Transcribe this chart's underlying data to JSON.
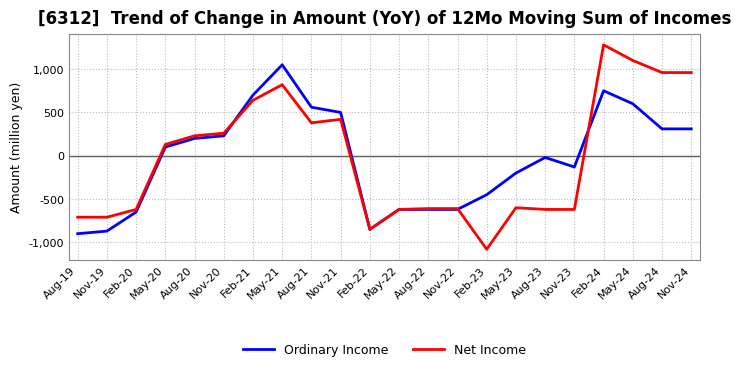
{
  "title": "[6312]  Trend of Change in Amount (YoY) of 12Mo Moving Sum of Incomes",
  "ylabel": "Amount (million yen)",
  "x_labels": [
    "Aug-19",
    "Nov-19",
    "Feb-20",
    "May-20",
    "Aug-20",
    "Nov-20",
    "Feb-21",
    "May-21",
    "Aug-21",
    "Nov-21",
    "Feb-22",
    "May-22",
    "Aug-22",
    "Nov-22",
    "Feb-23",
    "May-23",
    "Aug-23",
    "Nov-23",
    "Feb-24",
    "May-24",
    "Aug-24",
    "Nov-24"
  ],
  "ordinary_income": [
    -900,
    -870,
    -650,
    100,
    200,
    230,
    700,
    1050,
    560,
    500,
    -850,
    -620,
    -620,
    -620,
    -450,
    -200,
    -20,
    -130,
    750,
    600,
    310,
    310
  ],
  "net_income": [
    -710,
    -710,
    -620,
    130,
    230,
    260,
    640,
    820,
    380,
    420,
    -850,
    -620,
    -610,
    -610,
    -1080,
    -600,
    -620,
    -620,
    1280,
    1100,
    960,
    960
  ],
  "ordinary_income_color": "#0000FF",
  "net_income_color": "#FF0000",
  "ylim": [
    -1200,
    1400
  ],
  "yticks": [
    -1000,
    -500,
    0,
    500,
    1000
  ],
  "background_color": "#FFFFFF",
  "grid_color": "#BBBBBB",
  "zero_line_color": "#606060",
  "title_fontsize": 12,
  "axis_fontsize": 9,
  "tick_fontsize": 8,
  "legend_fontsize": 9
}
